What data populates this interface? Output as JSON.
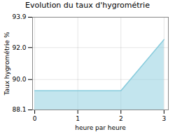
{
  "chart_data": {
    "type": "area",
    "title": "Evolution du taux d'hygrométrie",
    "xlabel": "heure par heure",
    "ylabel": "Taux hygrométrie %",
    "x": [
      0,
      1,
      2,
      2,
      3
    ],
    "values": [
      89.3,
      89.3,
      89.3,
      89.3,
      92.5
    ],
    "xlim": [
      -0.05,
      3.1
    ],
    "ylim": [
      88.1,
      93.9
    ],
    "xticks": [
      0,
      1,
      2,
      3
    ],
    "yticks": [
      88.1,
      {
        "value": 90.0,
        "label": "90.0"
      },
      {
        "value": 92.0,
        "label": "92.0"
      },
      93.9
    ],
    "color": "#88ccdd",
    "grid": true
  }
}
